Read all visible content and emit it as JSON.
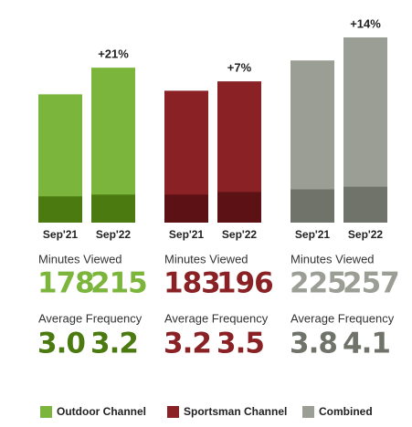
{
  "chart_data": {
    "type": "grouped-bar",
    "categories": [
      "Sep'21",
      "Sep'22"
    ],
    "minutes_label": "Minutes Viewed",
    "frequency_label": "Average Frequency",
    "groups": [
      {
        "name": "Outdoor Channel",
        "color": "#7cb53b",
        "dark_color": "#4a7a10",
        "change": "+21%",
        "minutes": [
          178,
          215
        ],
        "frequency": {
          "values": [
            3.0,
            3.2
          ],
          "value_labels": [
            "3.0",
            "3.2"
          ]
        }
      },
      {
        "name": "Sportsman Channel",
        "color": "#8a2225",
        "dark_color": "#5c1215",
        "change": "+7%",
        "minutes": [
          183,
          196
        ],
        "frequency": {
          "values": [
            3.2,
            3.5
          ],
          "value_labels": [
            "3.2",
            "3.5"
          ]
        }
      },
      {
        "name": "Combined",
        "color": "#9b9e94",
        "dark_color": "#6f7369",
        "change": "+14%",
        "minutes": [
          225,
          257
        ],
        "frequency": {
          "values": [
            3.8,
            4.1
          ],
          "value_labels": [
            "3.8",
            "4.1"
          ]
        }
      }
    ]
  }
}
